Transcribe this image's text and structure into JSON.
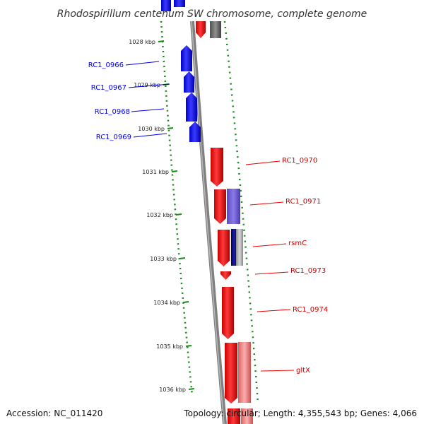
{
  "title": "Rhodospirillum centenum SW chromosome, complete genome",
  "accession": "Accession: NC_011420",
  "topology": "Topology: circular; Length: 4,355,543 bp; Genes: 4,066",
  "colors": {
    "reverse_strand": "#0000ee",
    "forward_strand": "#ee0000",
    "backbone": "#808080",
    "gc_ticks": "#1a8a1a",
    "other_feature_purple": "#6a5acd",
    "other_feature_navy": "#000080",
    "other_feature_gray": "#b0b0b0",
    "other_feature_pink": "#ee8080"
  },
  "ticks": [
    {
      "label": "1028 kbp"
    },
    {
      "label": "1029 kbp"
    },
    {
      "label": "1030 kbp"
    },
    {
      "label": "1031 kbp"
    },
    {
      "label": "1032 kbp"
    },
    {
      "label": "1033 kbp"
    },
    {
      "label": "1034 kbp"
    },
    {
      "label": "1035 kbp"
    },
    {
      "label": "1036 kbp"
    }
  ],
  "genes_reverse": [
    {
      "label": "RC1_0966"
    },
    {
      "label": "RC1_0967"
    },
    {
      "label": "RC1_0968"
    },
    {
      "label": "RC1_0969"
    }
  ],
  "genes_forward": [
    {
      "label": "RC1_0970"
    },
    {
      "label": "RC1_0971"
    },
    {
      "label": "rsmC"
    },
    {
      "label": "RC1_0973"
    },
    {
      "label": "RC1_0974"
    },
    {
      "label": "gltX"
    }
  ]
}
